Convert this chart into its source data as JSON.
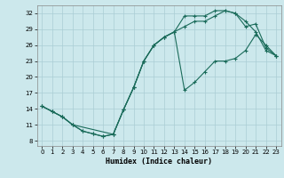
{
  "xlabel": "Humidex (Indice chaleur)",
  "bg_color": "#cce8ec",
  "line_color": "#1a6b5a",
  "grid_color": "#aacdd4",
  "xlim": [
    -0.5,
    23.5
  ],
  "ylim": [
    7,
    33.5
  ],
  "yticks": [
    8,
    11,
    14,
    17,
    20,
    23,
    26,
    29,
    32
  ],
  "xticks": [
    0,
    1,
    2,
    3,
    4,
    5,
    6,
    7,
    8,
    9,
    10,
    11,
    12,
    13,
    14,
    15,
    16,
    17,
    18,
    19,
    20,
    21,
    22,
    23
  ],
  "line1_x": [
    0,
    1,
    2,
    3,
    4,
    5,
    6,
    7,
    8,
    9,
    10,
    11,
    12,
    13,
    14,
    15,
    16,
    17,
    18,
    19,
    20,
    21,
    22,
    23
  ],
  "line1_y": [
    14.5,
    13.5,
    12.5,
    11.0,
    9.8,
    9.3,
    8.8,
    9.2,
    13.8,
    18.0,
    23.0,
    26.0,
    27.5,
    28.5,
    31.5,
    31.5,
    31.5,
    32.5,
    32.5,
    32.0,
    30.5,
    28.5,
    25.0,
    24.0
  ],
  "line2_x": [
    0,
    1,
    2,
    3,
    4,
    5,
    6,
    7,
    8,
    9,
    10,
    11,
    12,
    13,
    14,
    15,
    16,
    17,
    18,
    19,
    20,
    21,
    22,
    23
  ],
  "line2_y": [
    14.5,
    13.5,
    12.5,
    11.0,
    9.8,
    9.3,
    8.8,
    9.2,
    13.8,
    18.0,
    23.0,
    26.0,
    27.5,
    28.5,
    29.5,
    30.5,
    30.5,
    31.5,
    32.5,
    32.0,
    29.5,
    30.0,
    25.5,
    24.0
  ],
  "line3_x": [
    0,
    1,
    2,
    3,
    7,
    8,
    9,
    10,
    11,
    12,
    13,
    14,
    15,
    16,
    17,
    18,
    19,
    20,
    21,
    22,
    23
  ],
  "line3_y": [
    14.5,
    13.5,
    12.5,
    11.0,
    9.2,
    13.8,
    18.0,
    23.0,
    26.0,
    27.5,
    28.5,
    17.5,
    19.0,
    21.0,
    23.0,
    23.0,
    23.5,
    25.0,
    28.0,
    26.0,
    24.0
  ]
}
